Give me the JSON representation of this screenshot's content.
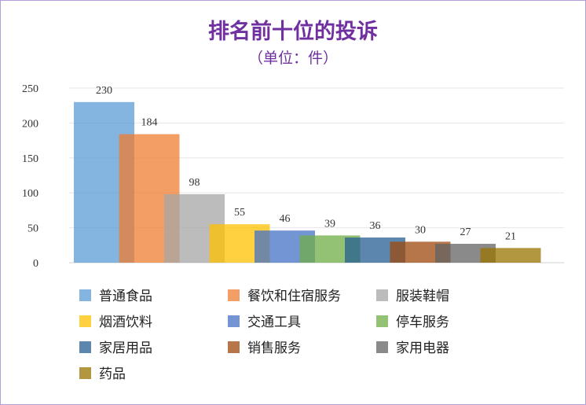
{
  "chart_data": {
    "type": "bar",
    "title": "排名前十位的投诉",
    "subtitle": "（单位：件）",
    "categories": [
      "普通食品",
      "餐饮和住宿服务",
      "服装鞋帽",
      "烟酒饮料",
      "交通工具",
      "停车服务",
      "家居用品",
      "销售服务",
      "家用电器",
      "药品"
    ],
    "values": [
      230,
      184,
      98,
      55,
      46,
      39,
      36,
      30,
      27,
      21
    ],
    "colors": [
      "#5b9bd5",
      "#ed7d31",
      "#a5a5a5",
      "#ffc000",
      "#4472c4",
      "#70ad47",
      "#255e91",
      "#9e480e",
      "#636363",
      "#997300"
    ],
    "y_ticks": [
      0,
      50,
      100,
      150,
      200,
      250
    ],
    "ylim": [
      0,
      250
    ],
    "grid": true,
    "bar_opacity": 0.75,
    "legend_position": "bottom",
    "xlabel": "",
    "ylabel": ""
  }
}
